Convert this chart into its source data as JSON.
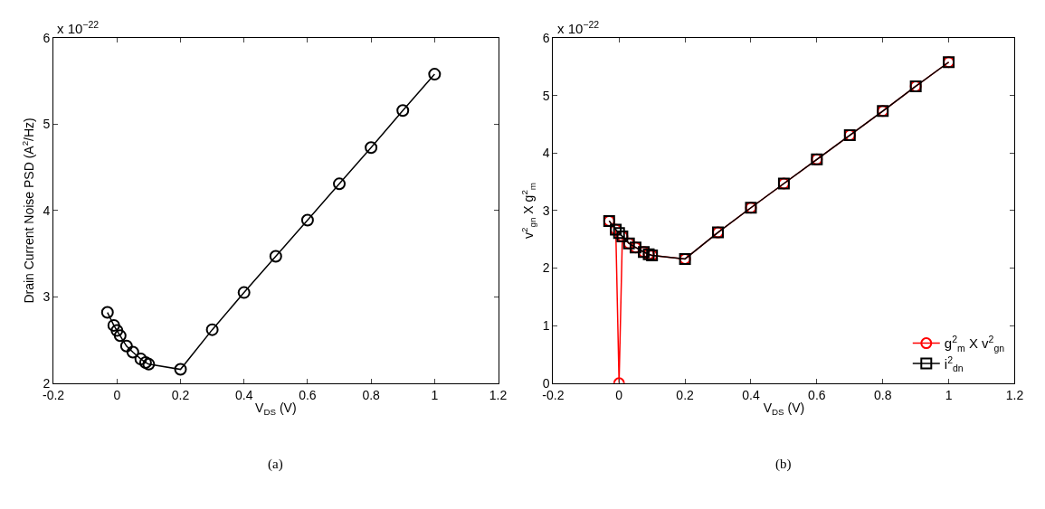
{
  "chart_data": [
    {
      "type": "line",
      "xlabel": "V$_{DS}$ (V)",
      "ylabel": "Drain Current Noise PSD (A$^{2}$/Hz)",
      "annotations": [
        "x 10$^{−22}$",
        "(a)"
      ],
      "x": [
        -0.03,
        -0.01,
        0,
        0.01,
        0.03,
        0.05,
        0.075,
        0.09,
        0.1,
        0.2,
        0.3,
        0.4,
        0.5,
        0.6,
        0.7,
        0.8,
        0.9,
        1.0
      ],
      "series": [
        {
          "color": "#000000",
          "marker": "circle",
          "values": [
            2.82,
            2.67,
            2.61,
            2.55,
            2.43,
            2.36,
            2.28,
            2.24,
            2.22,
            2.16,
            2.62,
            3.05,
            3.47,
            3.89,
            4.31,
            4.73,
            5.16,
            5.58
          ]
        }
      ],
      "xlim": [
        -0.2,
        1.2
      ],
      "xticks": [
        -0.2,
        0,
        0.2,
        0.4,
        0.6,
        0.8,
        1,
        1.2
      ],
      "ylim": [
        2,
        6
      ],
      "yticks": [
        2,
        3,
        4,
        5,
        6
      ],
      "legend": false,
      "line_style": "solid"
    },
    {
      "type": "line",
      "xlabel": "V$_{DS}$ (V)",
      "ylabel": "v$^{2}$$_{gn}$ X g$^{2}$$_{m}$",
      "annotations": [
        "x 10$^{−22}$",
        "(b)"
      ],
      "x": [
        -0.03,
        -0.01,
        0,
        0.01,
        0.03,
        0.05,
        0.075,
        0.09,
        0.1,
        0.2,
        0.3,
        0.4,
        0.5,
        0.6,
        0.7,
        0.8,
        0.9,
        1.0
      ],
      "series": [
        {
          "name": "g$^{2}$$_{m}$ X v$^{2}$$_{gn}$",
          "color": "#ff0000",
          "marker": "circle",
          "values": [
            2.82,
            2.67,
            0,
            2.55,
            2.43,
            2.36,
            2.28,
            2.24,
            2.22,
            2.16,
            2.62,
            3.05,
            3.47,
            3.89,
            4.31,
            4.73,
            5.16,
            5.58
          ]
        },
        {
          "name": "i$^{2}$$_{dn}$",
          "color": "#000000",
          "marker": "square",
          "values": [
            2.82,
            2.67,
            2.61,
            2.55,
            2.43,
            2.36,
            2.28,
            2.24,
            2.22,
            2.16,
            2.62,
            3.05,
            3.47,
            3.89,
            4.31,
            4.73,
            5.16,
            5.58
          ]
        }
      ],
      "xlim": [
        -0.2,
        1.2
      ],
      "xticks": [
        -0.2,
        0,
        0.2,
        0.4,
        0.6,
        0.8,
        1,
        1.2
      ],
      "ylim": [
        0,
        6
      ],
      "yticks": [
        0,
        1,
        2,
        3,
        4,
        5,
        6
      ],
      "legend": "bottom right",
      "line_style": "solid"
    }
  ]
}
